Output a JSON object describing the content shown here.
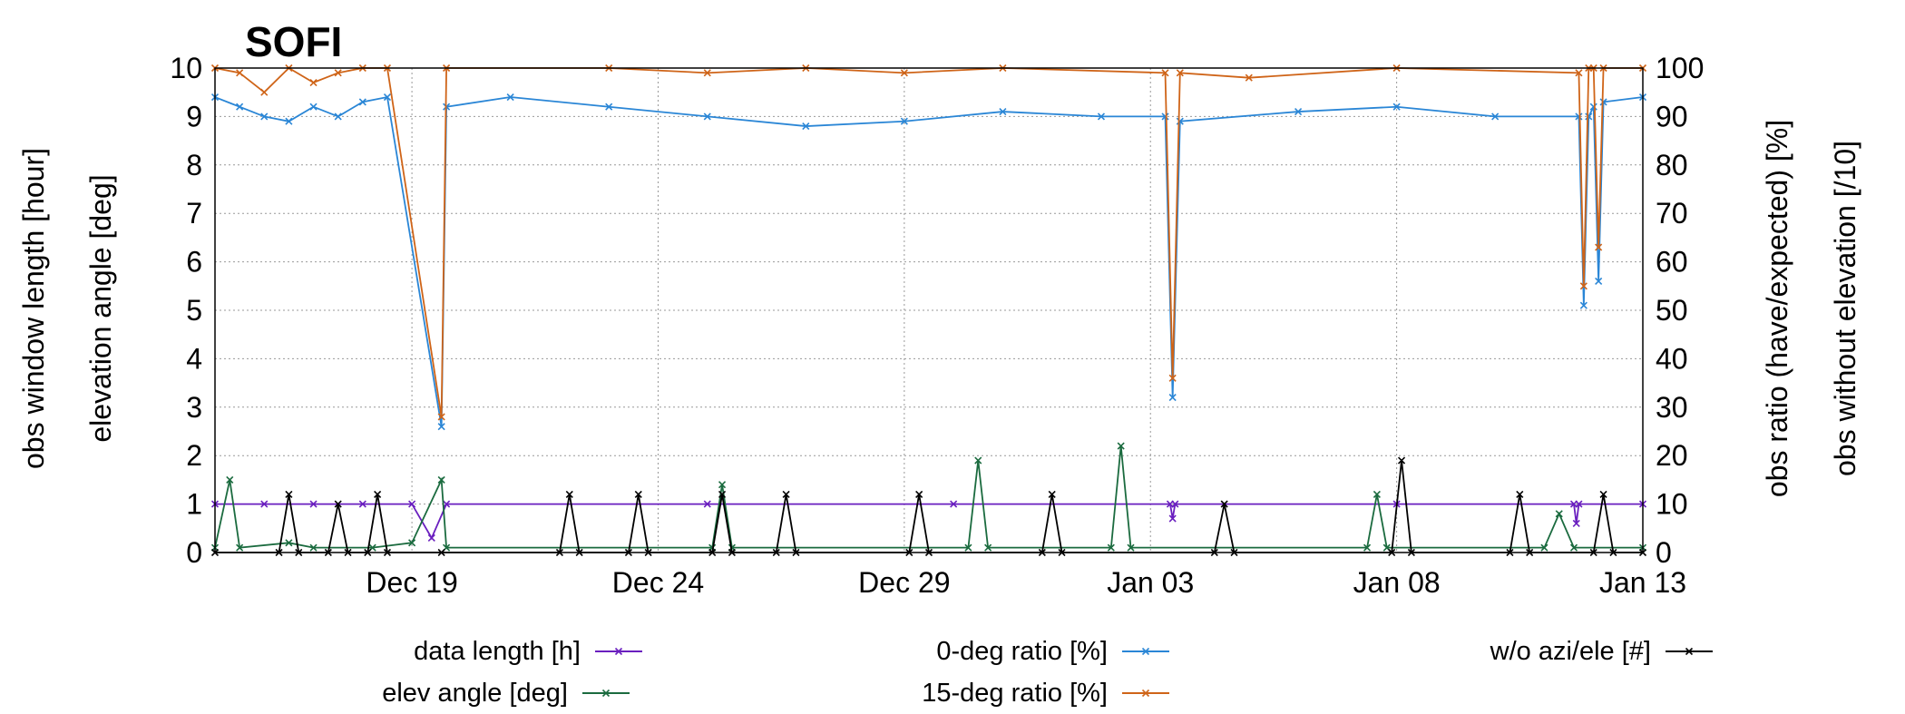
{
  "chart_data": {
    "type": "line",
    "title": "SOFI",
    "x_ticks": [
      "Dec 19",
      "Dec 24",
      "Dec 29",
      "Jan 03",
      "Jan 08",
      "Jan 13"
    ],
    "xlim": [
      "Dec 15",
      "Jan 13"
    ],
    "y_left_labels": [
      "obs window length [hour]",
      "elevation angle [deg]"
    ],
    "y_right_labels": [
      "obs ratio (have/expected) [%]",
      "obs without elevation [/10]"
    ],
    "ylim_left": [
      0,
      10
    ],
    "ylim_right": [
      0,
      100
    ],
    "y_left_ticks": [
      "0",
      "1",
      "2",
      "3",
      "4",
      "5",
      "6",
      "7",
      "8",
      "9",
      "10"
    ],
    "y_right_ticks": [
      "0",
      "10",
      "20",
      "30",
      "40",
      "50",
      "60",
      "70",
      "80",
      "90",
      "100"
    ],
    "grid": true,
    "legend_position": "bottom",
    "colors": {
      "data_length": "#6a1fbf",
      "elev_angle": "#1b6b3f",
      "ratio0": "#2a86d6",
      "ratio15": "#cf6418",
      "no_azi": "#000000"
    },
    "series": [
      {
        "name": "data length  [h]",
        "key": "data_length",
        "axis": "left",
        "points": [
          [
            0,
            1.0
          ],
          [
            1,
            1.0
          ],
          [
            2,
            1.0
          ],
          [
            3,
            1.0
          ],
          [
            4,
            1.0
          ],
          [
            4.4,
            0.3
          ],
          [
            4.7,
            1.0
          ],
          [
            10,
            1.0
          ],
          [
            15,
            1.0
          ],
          [
            19.4,
            1.0
          ],
          [
            19.45,
            0.7
          ],
          [
            19.5,
            1.0
          ],
          [
            24,
            1.0
          ],
          [
            27.6,
            1.0
          ],
          [
            27.65,
            0.6
          ],
          [
            27.7,
            1.0
          ],
          [
            29,
            1.0
          ]
        ]
      },
      {
        "name": "elev angle [deg]",
        "key": "elev_angle",
        "axis": "left",
        "points": [
          [
            0,
            0.1
          ],
          [
            0.3,
            1.5
          ],
          [
            0.5,
            0.1
          ],
          [
            1.5,
            0.2
          ],
          [
            2,
            0.1
          ],
          [
            3.2,
            0.1
          ],
          [
            4.0,
            0.2
          ],
          [
            4.6,
            1.5
          ],
          [
            4.7,
            0.1
          ],
          [
            10.1,
            0.1
          ],
          [
            10.3,
            1.4
          ],
          [
            10.5,
            0.1
          ],
          [
            15.3,
            0.1
          ],
          [
            15.5,
            1.9
          ],
          [
            15.7,
            0.1
          ],
          [
            18.2,
            0.1
          ],
          [
            18.4,
            2.2
          ],
          [
            18.6,
            0.1
          ],
          [
            23.4,
            0.1
          ],
          [
            23.6,
            1.2
          ],
          [
            23.8,
            0.1
          ],
          [
            27.0,
            0.1
          ],
          [
            27.3,
            0.8
          ],
          [
            27.6,
            0.1
          ],
          [
            29,
            0.1
          ]
        ]
      },
      {
        "name": "0-deg ratio [%]",
        "key": "ratio0",
        "axis": "right",
        "points": [
          [
            0,
            94
          ],
          [
            0.5,
            92
          ],
          [
            1,
            90
          ],
          [
            1.5,
            89
          ],
          [
            2,
            92
          ],
          [
            2.5,
            90
          ],
          [
            3,
            93
          ],
          [
            3.5,
            94
          ],
          [
            4.6,
            26
          ],
          [
            4.7,
            92
          ],
          [
            6,
            94
          ],
          [
            8,
            92
          ],
          [
            10,
            90
          ],
          [
            12,
            88
          ],
          [
            14,
            89
          ],
          [
            16,
            91
          ],
          [
            18,
            90
          ],
          [
            19.3,
            90
          ],
          [
            19.45,
            32
          ],
          [
            19.6,
            89
          ],
          [
            22,
            91
          ],
          [
            24,
            92
          ],
          [
            26,
            90
          ],
          [
            27.7,
            90
          ],
          [
            27.8,
            51
          ],
          [
            27.9,
            90
          ],
          [
            28,
            92
          ],
          [
            28.1,
            56
          ],
          [
            28.2,
            93
          ],
          [
            29,
            94
          ]
        ]
      },
      {
        "name": "15-deg ratio [%]",
        "key": "ratio15",
        "axis": "right",
        "points": [
          [
            0,
            100
          ],
          [
            0.5,
            99
          ],
          [
            1,
            95
          ],
          [
            1.5,
            100
          ],
          [
            2,
            97
          ],
          [
            2.5,
            99
          ],
          [
            3,
            100
          ],
          [
            3.5,
            100
          ],
          [
            4.6,
            28
          ],
          [
            4.7,
            100
          ],
          [
            8,
            100
          ],
          [
            10,
            99
          ],
          [
            12,
            100
          ],
          [
            14,
            99
          ],
          [
            16,
            100
          ],
          [
            19.3,
            99
          ],
          [
            19.45,
            36
          ],
          [
            19.6,
            99
          ],
          [
            21,
            98
          ],
          [
            24,
            100
          ],
          [
            27.7,
            99
          ],
          [
            27.8,
            55
          ],
          [
            27.9,
            100
          ],
          [
            28,
            100
          ],
          [
            28.1,
            63
          ],
          [
            28.2,
            100
          ],
          [
            29,
            100
          ]
        ]
      },
      {
        "name": "w/o azi/ele [#]",
        "key": "no_azi",
        "axis": "left",
        "points": [
          [
            0,
            0
          ],
          [
            1.3,
            0
          ],
          [
            1.5,
            1.2
          ],
          [
            1.7,
            0
          ],
          [
            2.3,
            0
          ],
          [
            2.5,
            1.0
          ],
          [
            2.7,
            0
          ],
          [
            3.1,
            0
          ],
          [
            3.3,
            1.2
          ],
          [
            3.5,
            0
          ],
          [
            4.6,
            0
          ],
          [
            7.0,
            0
          ],
          [
            7.2,
            1.2
          ],
          [
            7.4,
            0
          ],
          [
            8.4,
            0
          ],
          [
            8.6,
            1.2
          ],
          [
            8.8,
            0
          ],
          [
            10.1,
            0
          ],
          [
            10.3,
            1.2
          ],
          [
            10.5,
            0
          ],
          [
            11.4,
            0
          ],
          [
            11.6,
            1.2
          ],
          [
            11.8,
            0
          ],
          [
            14.1,
            0
          ],
          [
            14.3,
            1.2
          ],
          [
            14.5,
            0
          ],
          [
            16.8,
            0
          ],
          [
            17.0,
            1.2
          ],
          [
            17.2,
            0
          ],
          [
            20.3,
            0
          ],
          [
            20.5,
            1.0
          ],
          [
            20.7,
            0
          ],
          [
            23.9,
            0
          ],
          [
            24.1,
            1.9
          ],
          [
            24.3,
            0
          ],
          [
            26.3,
            0
          ],
          [
            26.5,
            1.2
          ],
          [
            26.7,
            0
          ],
          [
            28.0,
            0
          ],
          [
            28.2,
            1.2
          ],
          [
            28.4,
            0
          ],
          [
            29,
            0
          ]
        ]
      }
    ]
  }
}
